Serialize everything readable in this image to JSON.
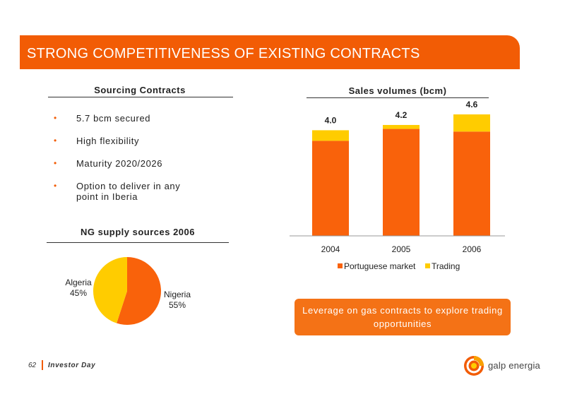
{
  "slide": {
    "title": "STRONG COMPETITIVENESS OF EXISTING CONTRACTS",
    "sourcing": {
      "heading": "Sourcing Contracts",
      "bullets": [
        "5.7 bcm secured",
        "High flexibility",
        "Maturity 2020/2026",
        "Option to deliver in any point in Iberia"
      ]
    },
    "supply": {
      "heading": "NG supply sources 2006",
      "algeria_label": "Algeria",
      "algeria_pct": "45%",
      "nigeria_label": "Nigeria",
      "nigeria_pct": "55%"
    },
    "callout": "Leverage on gas contracts to explore trading opportunities",
    "footer": {
      "page": "62",
      "event": "Investor Day"
    },
    "logo": {
      "text": "galp energia"
    }
  },
  "colors": {
    "orange": "#f25c05",
    "bar_orange": "#f9620b",
    "yellow": "#ffcc00"
  },
  "chart_data": [
    {
      "type": "bar",
      "stacked": true,
      "title": "Sales volumes (bcm)",
      "categories": [
        "2004",
        "2005",
        "2006"
      ],
      "series": [
        {
          "name": "Portuguese market",
          "values": [
            3.6,
            4.05,
            3.95
          ],
          "color": "#f9620b"
        },
        {
          "name": "Trading",
          "values": [
            0.4,
            0.15,
            0.65
          ],
          "color": "#ffcc00"
        }
      ],
      "totals": [
        "4.0",
        "4.2",
        "4.6"
      ],
      "ylim": [
        0,
        4.6
      ],
      "legend": "bottom"
    },
    {
      "type": "pie",
      "title": "NG supply sources 2006",
      "labels": [
        "Nigeria",
        "Algeria"
      ],
      "values": [
        55,
        45
      ],
      "colors": [
        "#f9620b",
        "#ffcc00"
      ]
    }
  ]
}
